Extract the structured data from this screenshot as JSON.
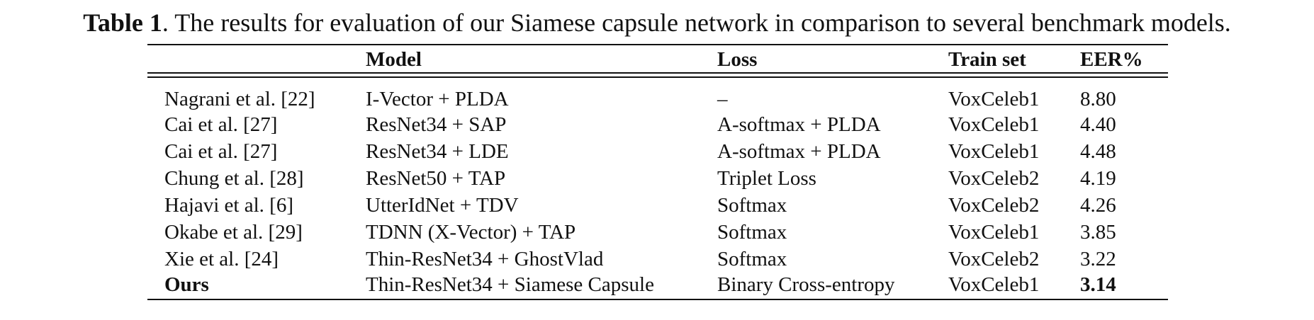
{
  "caption": {
    "label": "Table 1",
    "text": ". The results for evaluation of our Siamese capsule network in comparison to several benchmark models."
  },
  "table": {
    "headers": [
      "",
      "Model",
      "Loss",
      "Train set",
      "EER%"
    ],
    "rows": [
      {
        "ref": "Nagrani et al. [22]",
        "model": "I-Vector + PLDA",
        "loss": "–",
        "train": "VoxCeleb1",
        "eer": "8.80"
      },
      {
        "ref": "Cai et al. [27]",
        "model": "ResNet34 + SAP",
        "loss": "A-softmax + PLDA",
        "train": "VoxCeleb1",
        "eer": "4.40"
      },
      {
        "ref": "Cai et al. [27]",
        "model": "ResNet34 + LDE",
        "loss": "A-softmax + PLDA",
        "train": "VoxCeleb1",
        "eer": "4.48"
      },
      {
        "ref": "Chung et al. [28]",
        "model": "ResNet50 + TAP",
        "loss": "Triplet Loss",
        "train": "VoxCeleb2",
        "eer": "4.19"
      },
      {
        "ref": "Hajavi et al. [6]",
        "model": "UtterIdNet + TDV",
        "loss": "Softmax",
        "train": "VoxCeleb2",
        "eer": "4.26"
      },
      {
        "ref": "Okabe et al. [29]",
        "model": "TDNN (X-Vector) + TAP",
        "loss": "Softmax",
        "train": "VoxCeleb1",
        "eer": "3.85"
      },
      {
        "ref": "Xie et al. [24]",
        "model": "Thin-ResNet34 + GhostVlad",
        "loss": "Softmax",
        "train": "VoxCeleb2",
        "eer": "3.22"
      },
      {
        "ref": "Ours",
        "model": "Thin-ResNet34 + Siamese Capsule",
        "loss": "Binary Cross-entropy",
        "train": "VoxCeleb1",
        "eer": "3.14"
      }
    ]
  }
}
